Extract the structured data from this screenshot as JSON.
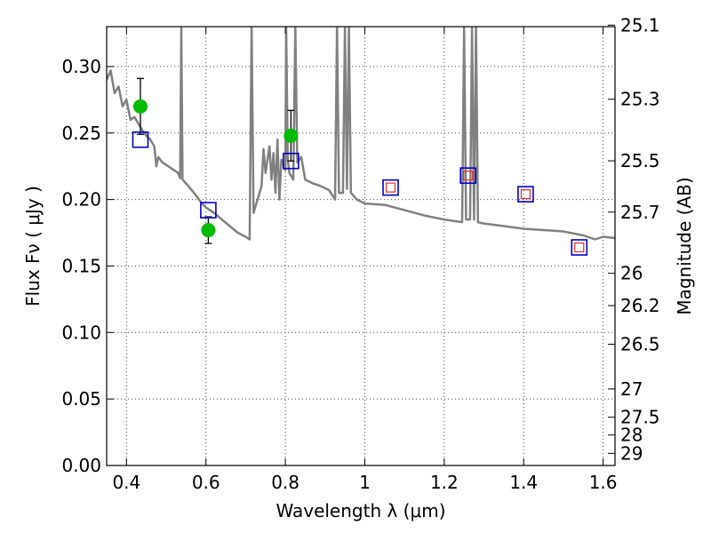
{
  "chart_data": {
    "type": "scatter",
    "xlabel": "Wavelength  λ (μm)",
    "ylabel": "Flux  Fν  ( μJy )",
    "y2label": "Magnitude (AB)",
    "xlim": [
      0.35,
      1.63
    ],
    "ylim": [
      0.0,
      0.33
    ],
    "grid": true,
    "x_ticks": [
      "0.4",
      "0.6",
      "0.8",
      "1",
      "1.2",
      "1.4",
      "1.6"
    ],
    "y_ticks": [
      "0.00",
      "0.05",
      "0.10",
      "0.15",
      "0.20",
      "0.25",
      "0.30"
    ],
    "y2_ticks": [
      {
        "label": "25.1",
        "mag": 25.1
      },
      {
        "label": "25.3",
        "mag": 25.3
      },
      {
        "label": "25.5",
        "mag": 25.5
      },
      {
        "label": "25.7",
        "mag": 25.7
      },
      {
        "label": "26",
        "mag": 26.0
      },
      {
        "label": "26.2",
        "mag": 26.2
      },
      {
        "label": "26.5",
        "mag": 26.5
      },
      {
        "label": "27",
        "mag": 27.0
      },
      {
        "label": "27.5",
        "mag": 27.5
      },
      {
        "label": "28",
        "mag": 28.0
      },
      {
        "label": "29",
        "mag": 29.0
      }
    ],
    "series": [
      {
        "kind": "line",
        "color": "#808080",
        "points": [
          [
            0.35,
            0.29
          ],
          [
            0.36,
            0.297
          ],
          [
            0.37,
            0.28
          ],
          [
            0.38,
            0.285
          ],
          [
            0.39,
            0.27
          ],
          [
            0.4,
            0.275
          ],
          [
            0.41,
            0.26
          ],
          [
            0.42,
            0.262
          ],
          [
            0.43,
            0.257
          ],
          [
            0.44,
            0.252
          ],
          [
            0.45,
            0.248
          ],
          [
            0.46,
            0.245
          ],
          [
            0.47,
            0.24
          ],
          [
            0.475,
            0.225
          ],
          [
            0.48,
            0.232
          ],
          [
            0.49,
            0.228
          ],
          [
            0.5,
            0.226
          ],
          [
            0.51,
            0.224
          ],
          [
            0.52,
            0.222
          ],
          [
            0.53,
            0.22
          ],
          [
            0.535,
            0.216
          ],
          [
            0.538,
            0.33
          ],
          [
            0.541,
            0.215
          ],
          [
            0.55,
            0.212
          ],
          [
            0.57,
            0.205
          ],
          [
            0.59,
            0.197
          ],
          [
            0.6,
            0.194
          ],
          [
            0.62,
            0.19
          ],
          [
            0.64,
            0.185
          ],
          [
            0.66,
            0.18
          ],
          [
            0.68,
            0.175
          ],
          [
            0.7,
            0.172
          ],
          [
            0.71,
            0.17
          ],
          [
            0.715,
            0.33
          ],
          [
            0.72,
            0.19
          ],
          [
            0.73,
            0.2
          ],
          [
            0.74,
            0.21
          ],
          [
            0.745,
            0.238
          ],
          [
            0.75,
            0.22
          ],
          [
            0.76,
            0.24
          ],
          [
            0.765,
            0.215
          ],
          [
            0.77,
            0.235
          ],
          [
            0.775,
            0.205
          ],
          [
            0.78,
            0.245
          ],
          [
            0.785,
            0.2
          ],
          [
            0.79,
            0.23
          ],
          [
            0.8,
            0.222
          ],
          [
            0.802,
            0.33
          ],
          [
            0.806,
            0.23
          ],
          [
            0.81,
            0.22
          ],
          [
            0.82,
            0.215
          ],
          [
            0.825,
            0.33
          ],
          [
            0.83,
            0.228
          ],
          [
            0.84,
            0.232
          ],
          [
            0.85,
            0.215
          ],
          [
            0.87,
            0.212
          ],
          [
            0.89,
            0.21
          ],
          [
            0.91,
            0.207
          ],
          [
            0.925,
            0.2
          ],
          [
            0.93,
            0.33
          ],
          [
            0.935,
            0.205
          ],
          [
            0.945,
            0.205
          ],
          [
            0.95,
            0.33
          ],
          [
            0.955,
            0.208
          ],
          [
            0.96,
            0.33
          ],
          [
            0.965,
            0.205
          ],
          [
            0.98,
            0.2
          ],
          [
            1.0,
            0.197
          ],
          [
            1.05,
            0.196
          ],
          [
            1.1,
            0.192
          ],
          [
            1.15,
            0.188
          ],
          [
            1.2,
            0.185
          ],
          [
            1.245,
            0.183
          ],
          [
            1.25,
            0.33
          ],
          [
            1.255,
            0.185
          ],
          [
            1.265,
            0.185
          ],
          [
            1.27,
            0.33
          ],
          [
            1.275,
            0.185
          ],
          [
            1.28,
            0.33
          ],
          [
            1.285,
            0.183
          ],
          [
            1.3,
            0.182
          ],
          [
            1.35,
            0.18
          ],
          [
            1.4,
            0.178
          ],
          [
            1.45,
            0.177
          ],
          [
            1.5,
            0.176
          ],
          [
            1.55,
            0.173
          ],
          [
            1.58,
            0.17
          ],
          [
            1.6,
            0.172
          ],
          [
            1.63,
            0.171
          ]
        ]
      },
      {
        "kind": "observed",
        "color": "#00bb00",
        "points": [
          {
            "x": 0.435,
            "y": 0.27,
            "err": 0.021
          },
          {
            "x": 0.606,
            "y": 0.177,
            "err": 0.01
          },
          {
            "x": 0.814,
            "y": 0.248,
            "err": 0.019
          }
        ]
      },
      {
        "kind": "model",
        "color": "#0000cc",
        "points": [
          [
            0.435,
            0.245
          ],
          [
            0.606,
            0.192
          ],
          [
            0.814,
            0.229
          ],
          [
            1.065,
            0.209
          ],
          [
            1.26,
            0.218
          ],
          [
            1.405,
            0.204
          ],
          [
            1.54,
            0.164
          ]
        ]
      },
      {
        "kind": "model-inner",
        "color": "#e03030",
        "points": [
          [
            1.065,
            0.209
          ],
          [
            1.26,
            0.218
          ],
          [
            1.405,
            0.204
          ],
          [
            1.54,
            0.164
          ]
        ]
      }
    ]
  }
}
